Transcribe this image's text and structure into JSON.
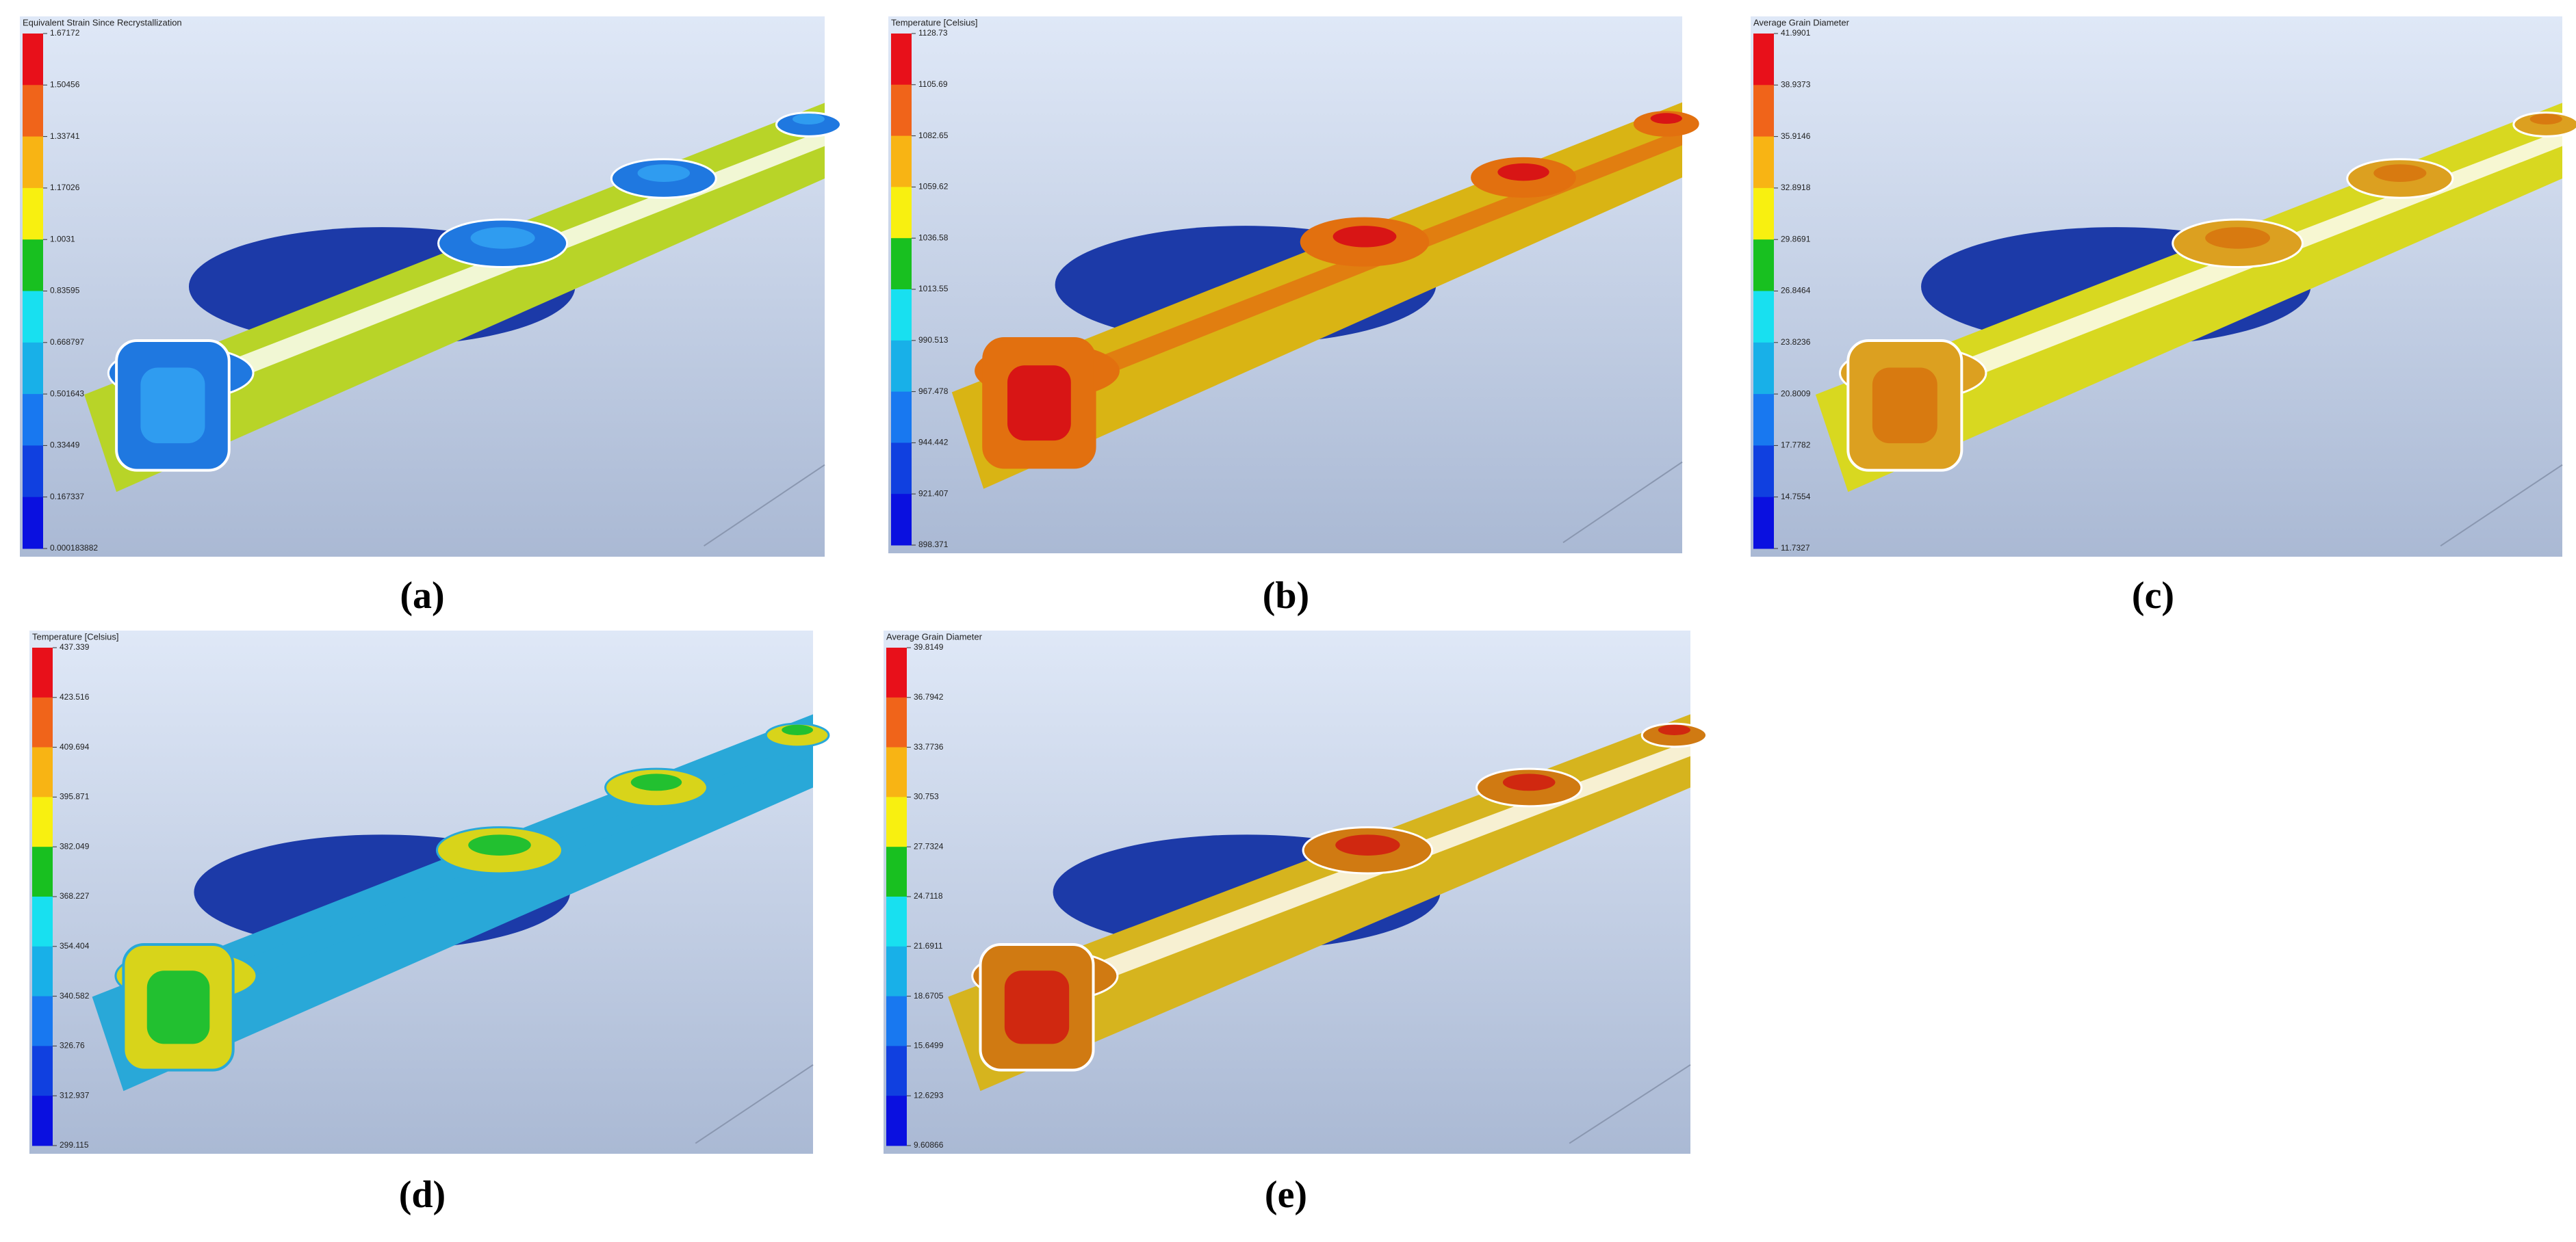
{
  "panels": [
    {
      "title": "Equivalent Strain Since Recrystallization",
      "caption": "(a)",
      "legend": [
        "1.67172",
        "1.50456",
        "1.33741",
        "1.17026",
        "1.0031",
        "0.83595",
        "0.668797",
        "0.501643",
        "0.33449",
        "0.167337",
        "0.000183882"
      ]
    },
    {
      "title": "Temperature [Celsius]",
      "caption": "(b)",
      "legend": [
        "1128.73",
        "1105.69",
        "1082.65",
        "1059.62",
        "1036.58",
        "1013.55",
        "990.513",
        "967.478",
        "944.442",
        "921.407",
        "898.371"
      ]
    },
    {
      "title": "Average Grain Diameter",
      "caption": "(c)",
      "legend": [
        "41.9901",
        "38.9373",
        "35.9146",
        "32.8918",
        "29.8691",
        "26.8464",
        "23.8236",
        "20.8009",
        "17.7782",
        "14.7554",
        "11.7327"
      ]
    },
    {
      "title": "Temperature [Celsius]",
      "caption": "(d)",
      "legend": [
        "437.339",
        "423.516",
        "409.694",
        "395.871",
        "382.049",
        "368.227",
        "354.404",
        "340.582",
        "326.76",
        "312.937",
        "299.115"
      ]
    },
    {
      "title": "Average Grain Diameter",
      "caption": "(e)",
      "legend": [
        "39.8149",
        "36.7942",
        "33.7736",
        "30.753",
        "27.7324",
        "24.7118",
        "21.6911",
        "18.6705",
        "15.6499",
        "12.6293",
        "9.60866"
      ]
    }
  ]
}
